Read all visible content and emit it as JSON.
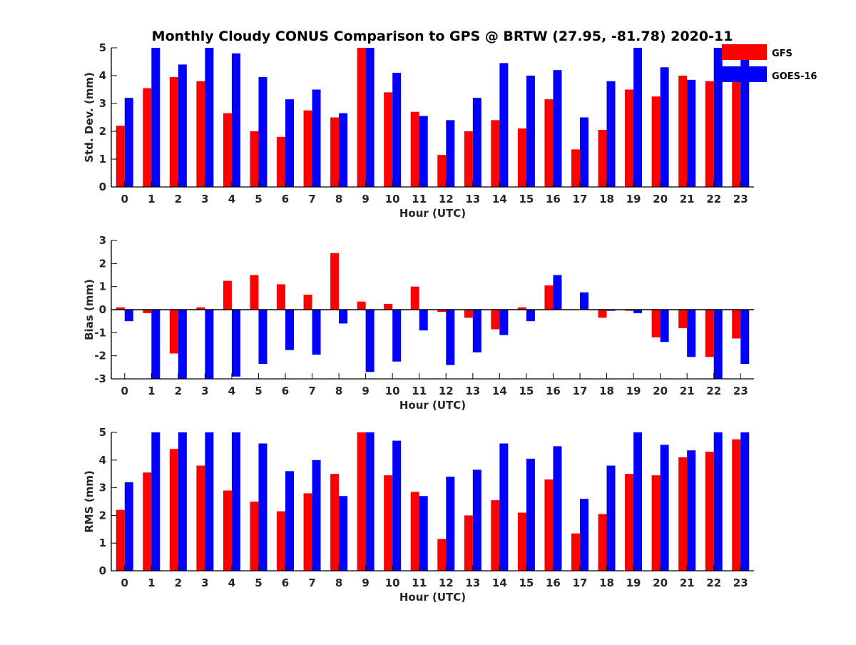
{
  "title": "Monthly Cloudy CONUS Comparison to GPS @ BRTW (27.95, -81.78) 2020-11",
  "colors": {
    "GFS": "#ff0000",
    "GOES-16": "#0000ff",
    "axis": "#000000",
    "text": "#262626"
  },
  "legend": {
    "placement": "top-right",
    "entries": [
      "GFS",
      "GOES-16"
    ]
  },
  "chart_data": [
    {
      "type": "bar",
      "ylabel": "Std. Dev. (mm)",
      "xlabel": "Hour (UTC)",
      "ylim": [
        0,
        5
      ],
      "yticks": [
        0,
        1,
        2,
        3,
        4,
        5
      ],
      "categories": [
        "0",
        "1",
        "2",
        "3",
        "4",
        "5",
        "6",
        "7",
        "8",
        "9",
        "10",
        "11",
        "12",
        "13",
        "14",
        "15",
        "16",
        "17",
        "18",
        "19",
        "20",
        "21",
        "22",
        "23"
      ],
      "series": [
        {
          "name": "GFS",
          "values": [
            2.2,
            3.55,
            3.95,
            3.8,
            2.65,
            2.0,
            1.8,
            2.75,
            2.5,
            5.0,
            3.4,
            2.7,
            1.15,
            2.0,
            2.4,
            2.1,
            3.15,
            1.35,
            2.05,
            3.5,
            3.25,
            4.0,
            3.8,
            4.2
          ]
        },
        {
          "name": "GOES-16",
          "values": [
            3.2,
            5.0,
            4.4,
            5.0,
            4.8,
            3.95,
            3.15,
            3.5,
            2.65,
            5.0,
            4.1,
            2.55,
            2.4,
            3.2,
            4.45,
            4.0,
            4.2,
            2.5,
            3.8,
            5.0,
            4.3,
            3.85,
            5.0,
            4.6
          ]
        }
      ]
    },
    {
      "type": "bar",
      "ylabel": "Bias (mm)",
      "xlabel": "Hour (UTC)",
      "ylim": [
        -3,
        3
      ],
      "yticks": [
        -3,
        -2,
        -1,
        0,
        1,
        2,
        3
      ],
      "categories": [
        "0",
        "1",
        "2",
        "3",
        "4",
        "5",
        "6",
        "7",
        "8",
        "9",
        "10",
        "11",
        "12",
        "13",
        "14",
        "15",
        "16",
        "17",
        "18",
        "19",
        "20",
        "21",
        "22",
        "23"
      ],
      "series": [
        {
          "name": "GFS",
          "values": [
            0.1,
            -0.15,
            -1.9,
            0.1,
            1.25,
            1.5,
            1.1,
            0.65,
            2.45,
            0.35,
            0.25,
            1.0,
            -0.1,
            -0.35,
            -0.85,
            0.1,
            1.05,
            0.0,
            -0.35,
            -0.05,
            -1.2,
            -0.8,
            -2.05,
            -1.25
          ]
        },
        {
          "name": "GOES-16",
          "values": [
            -0.5,
            -3.0,
            -3.0,
            -3.0,
            -2.9,
            -2.35,
            -1.75,
            -1.95,
            -0.6,
            -2.7,
            -2.25,
            -0.9,
            -2.4,
            -1.85,
            -1.1,
            -0.5,
            1.5,
            0.75,
            -0.05,
            -0.15,
            -1.4,
            -2.05,
            -3.0,
            -2.35
          ]
        }
      ]
    },
    {
      "type": "bar",
      "ylabel": "RMS (mm)",
      "xlabel": "Hour (UTC)",
      "ylim": [
        0,
        5
      ],
      "yticks": [
        0,
        1,
        2,
        3,
        4,
        5
      ],
      "categories": [
        "0",
        "1",
        "2",
        "3",
        "4",
        "5",
        "6",
        "7",
        "8",
        "9",
        "10",
        "11",
        "12",
        "13",
        "14",
        "15",
        "16",
        "17",
        "18",
        "19",
        "20",
        "21",
        "22",
        "23"
      ],
      "series": [
        {
          "name": "GFS",
          "values": [
            2.2,
            3.55,
            4.4,
            3.8,
            2.9,
            2.5,
            2.15,
            2.8,
            3.5,
            5.0,
            3.45,
            2.85,
            1.15,
            2.0,
            2.55,
            2.1,
            3.3,
            1.35,
            2.05,
            3.5,
            3.45,
            4.1,
            4.3,
            4.75
          ]
        },
        {
          "name": "GOES-16",
          "values": [
            3.2,
            5.0,
            5.0,
            5.0,
            5.0,
            4.6,
            3.6,
            4.0,
            2.7,
            5.0,
            4.7,
            2.7,
            3.4,
            3.65,
            4.6,
            4.05,
            4.5,
            2.6,
            3.8,
            5.0,
            4.55,
            4.35,
            5.0,
            5.0
          ]
        }
      ]
    }
  ]
}
